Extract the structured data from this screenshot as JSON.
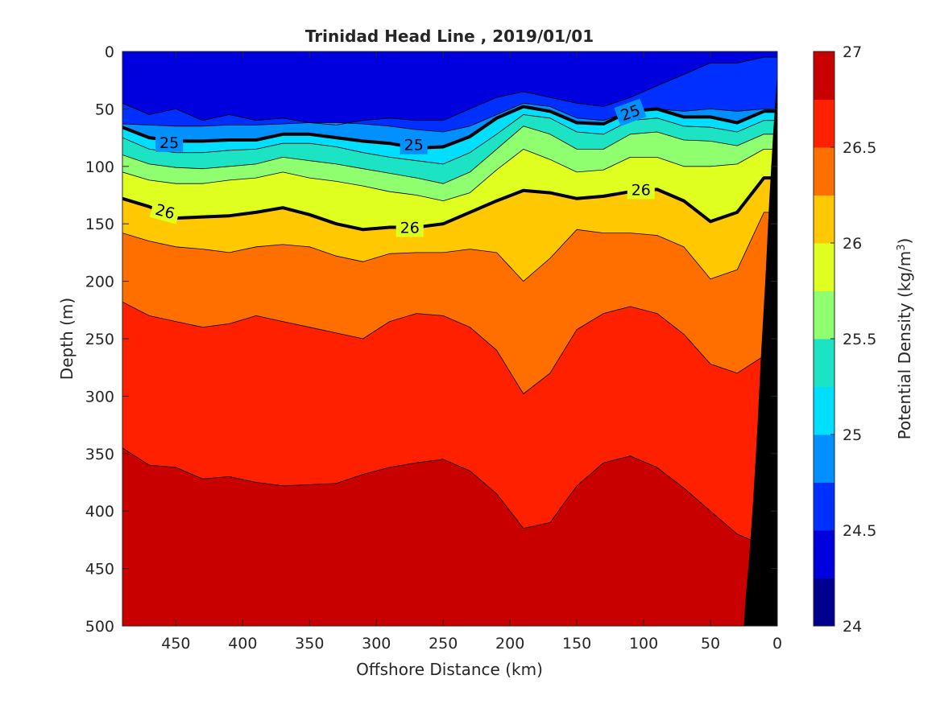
{
  "chart_data": {
    "type": "contour",
    "title": "Trinidad Head Line , 2019/01/01",
    "xlabel": "Offshore Distance (km)",
    "ylabel": "Depth (m)",
    "xlim": [
      490,
      0
    ],
    "x_reversed": true,
    "ylim": [
      0,
      500
    ],
    "y_reversed": true,
    "x_ticks": [
      450,
      400,
      350,
      300,
      250,
      200,
      150,
      100,
      50,
      0
    ],
    "y_ticks": [
      0,
      50,
      100,
      150,
      200,
      250,
      300,
      350,
      400,
      450,
      500
    ],
    "colorbar": {
      "label_main": "Potential Density (kg/m",
      "label_sup": "3",
      "label_end": ")",
      "range": [
        24,
        27
      ],
      "ticks": [
        24,
        24.5,
        25,
        25.5,
        26,
        26.5,
        27
      ],
      "levels": [
        24,
        24.25,
        24.5,
        24.75,
        25,
        25.25,
        25.5,
        25.75,
        26,
        26.25,
        26.5,
        26.75,
        27
      ],
      "colors": [
        "#00008f",
        "#0000df",
        "#0030ff",
        "#0090ff",
        "#00dfff",
        "#1ce3c3",
        "#8fff70",
        "#dfff20",
        "#ffc800",
        "#ff6f00",
        "#ff2000",
        "#c80000"
      ]
    },
    "contour_labels": [
      {
        "text": "25",
        "x": 455,
        "y": 79,
        "angle": 0
      },
      {
        "text": "25",
        "x": 272,
        "y": 81,
        "angle": 0
      },
      {
        "text": "25",
        "x": 110,
        "y": 53,
        "angle": -20
      },
      {
        "text": "26",
        "x": 458,
        "y": 139,
        "angle": 15
      },
      {
        "text": "26",
        "x": 275,
        "y": 153,
        "angle": 0
      },
      {
        "text": "26",
        "x": 102,
        "y": 120,
        "angle": 0
      }
    ],
    "isopycnal_depths": {
      "x": [
        490,
        470,
        450,
        430,
        410,
        390,
        370,
        350,
        330,
        310,
        290,
        270,
        250,
        230,
        210,
        190,
        170,
        150,
        130,
        110,
        90,
        70,
        50,
        30,
        10
      ],
      "boundaries": [
        {
          "level": 24.5,
          "depth": [
            45,
            55,
            50,
            60,
            55,
            60,
            58,
            62,
            64,
            60,
            58,
            60,
            60,
            50,
            40,
            35,
            40,
            45,
            48,
            40,
            30,
            20,
            10,
            10,
            5
          ]
        },
        {
          "level": 24.75,
          "depth": [
            63,
            64,
            65,
            65,
            64,
            64,
            63,
            62,
            62,
            63,
            65,
            68,
            70,
            65,
            55,
            45,
            48,
            58,
            60,
            52,
            50,
            52,
            50,
            52,
            50
          ]
        },
        {
          "level": 25,
          "depth": [
            66,
            75,
            78,
            78,
            77,
            77,
            72,
            72,
            75,
            78,
            80,
            84,
            83,
            74,
            58,
            48,
            52,
            62,
            63,
            52,
            50,
            57,
            57,
            62,
            52
          ]
        },
        {
          "level": 25.25,
          "depth": [
            75,
            85,
            88,
            88,
            86,
            85,
            80,
            80,
            83,
            88,
            92,
            95,
            98,
            88,
            72,
            55,
            58,
            70,
            72,
            60,
            58,
            65,
            66,
            70,
            60
          ]
        },
        {
          "level": 25.5,
          "depth": [
            90,
            98,
            101,
            102,
            100,
            98,
            92,
            95,
            98,
            102,
            106,
            110,
            115,
            105,
            85,
            65,
            72,
            85,
            85,
            72,
            70,
            77,
            78,
            82,
            72
          ]
        },
        {
          "level": 25.75,
          "depth": [
            105,
            112,
            115,
            115,
            112,
            110,
            105,
            110,
            113,
            117,
            122,
            125,
            130,
            123,
            103,
            85,
            94,
            105,
            103,
            92,
            92,
            100,
            100,
            98,
            85
          ]
        },
        {
          "level": 26,
          "depth": [
            128,
            135,
            145,
            144,
            143,
            140,
            136,
            142,
            150,
            155,
            153,
            153,
            150,
            140,
            130,
            121,
            123,
            128,
            126,
            122,
            120,
            130,
            148,
            140,
            110
          ]
        },
        {
          "level": 26.25,
          "depth": [
            158,
            165,
            170,
            172,
            175,
            170,
            168,
            170,
            178,
            183,
            176,
            175,
            175,
            172,
            175,
            200,
            180,
            155,
            158,
            158,
            160,
            170,
            198,
            190,
            140
          ]
        },
        {
          "level": 26.5,
          "depth": [
            218,
            230,
            235,
            240,
            237,
            230,
            235,
            240,
            245,
            250,
            235,
            228,
            230,
            240,
            260,
            298,
            280,
            242,
            228,
            222,
            228,
            246,
            272,
            280,
            265
          ]
        },
        {
          "level": 26.75,
          "depth": [
            345,
            360,
            362,
            372,
            370,
            375,
            378,
            377,
            376,
            368,
            362,
            358,
            355,
            365,
            385,
            415,
            410,
            378,
            358,
            352,
            362,
            380,
            400,
            420,
            430
          ]
        }
      ]
    },
    "bathymetry": {
      "color": "#000000",
      "x": [
        0,
        3,
        6,
        9,
        12,
        15,
        18,
        21,
        24,
        25,
        0
      ],
      "depth": [
        18,
        70,
        130,
        200,
        260,
        330,
        390,
        440,
        480,
        500,
        500
      ]
    }
  }
}
